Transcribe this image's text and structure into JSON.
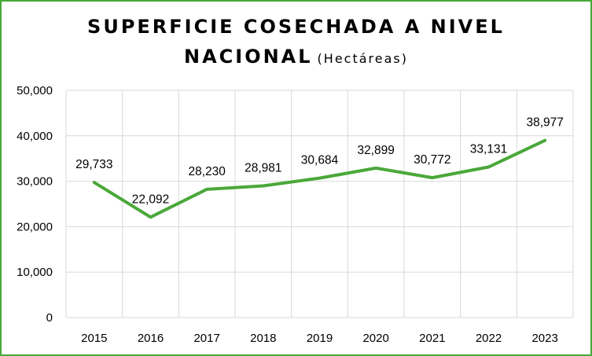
{
  "chart_data": {
    "type": "line",
    "title_line1": "SUPERFICIE  COSECHADA A NIVEL",
    "title_line2": "NACIONAL",
    "title_unit": "(Hectáreas)",
    "categories": [
      "2015",
      "2016",
      "2017",
      "2018",
      "2019",
      "2020",
      "2021",
      "2022",
      "2023"
    ],
    "values": [
      29733,
      22092,
      28230,
      28981,
      30684,
      32899,
      30772,
      33131,
      38977
    ],
    "value_labels": [
      "29,733",
      "22,092",
      "28,230",
      "28,981",
      "30,684",
      "32,899",
      "30,772",
      "33,131",
      "38,977"
    ],
    "y_ticks": [
      0,
      10000,
      20000,
      30000,
      40000,
      50000
    ],
    "y_tick_labels": [
      "0",
      "10,000",
      "20,000",
      "30,000",
      "40,000",
      "50,000"
    ],
    "ylim": [
      0,
      50000
    ],
    "grid": true,
    "legend": "none",
    "line_color": "#4aa83a",
    "grid_color": "#d9d9d9",
    "frame_color": "#4aa83a"
  }
}
